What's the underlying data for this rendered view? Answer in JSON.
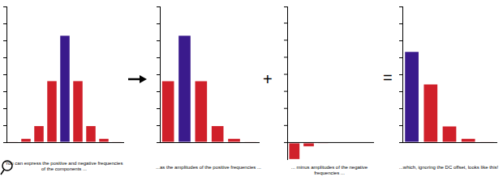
{
  "chart_data": [
    {
      "type": "bar",
      "title": [
        "You can express the positive and negative frequencies",
        "of the components ..."
      ],
      "categories": [
        null,
        null,
        null,
        null,
        null,
        null,
        null,
        null,
        null
      ],
      "values": [
        0.02,
        0.2,
        0.95,
        3.6,
        6.27,
        3.6,
        0.95,
        0.2,
        0.02
      ],
      "colors": [
        "#d0202a",
        "#d0202a",
        "#d0202a",
        "#d0202a",
        "#3a1a8c",
        "#d0202a",
        "#d0202a",
        "#d0202a",
        "#d0202a"
      ],
      "ylim": [
        0,
        8
      ],
      "yticks": [
        0,
        1,
        2,
        3,
        4,
        5,
        6,
        7,
        8
      ],
      "grid": false,
      "tick_labels": false
    },
    {
      "type": "bar",
      "title": "...as the amplitudes of the positive frequencies ...",
      "categories": [
        null,
        null,
        null,
        null,
        null,
        null
      ],
      "values": [
        3.6,
        6.27,
        3.6,
        0.95,
        0.2,
        0.02
      ],
      "colors": [
        "#d0202a",
        "#3a1a8c",
        "#d0202a",
        "#d0202a",
        "#d0202a",
        "#d0202a"
      ],
      "ylim": [
        0,
        8
      ],
      "yticks": [
        0,
        1,
        2,
        3,
        4,
        5,
        6,
        7,
        8
      ],
      "grid": false,
      "tick_labels": false
    },
    {
      "type": "bar",
      "title": "... minus amplitudes of the negative frequencies ...",
      "categories": [
        null,
        null,
        null,
        null,
        null,
        null
      ],
      "values": [
        -0.95,
        -0.2,
        -0.02,
        null,
        null,
        null
      ],
      "colors": [
        "#d0202a",
        "#d0202a",
        "#d0202a",
        "#d0202a",
        "#d0202a",
        "#d0202a"
      ],
      "ylim": [
        -1,
        8
      ],
      "yticks": [
        0,
        1,
        2,
        3,
        4,
        5,
        6,
        7,
        8
      ],
      "grid": false,
      "tick_labels": false
    },
    {
      "type": "bar",
      "title": "...which, ignoring the DC offset, looks like this!",
      "categories": [
        null,
        null,
        null,
        null,
        null
      ],
      "values": [
        5.32,
        3.4,
        0.93,
        0.2,
        0.02
      ],
      "colors": [
        "#3a1a8c",
        "#d0202a",
        "#d0202a",
        "#d0202a",
        "#d0202a"
      ],
      "ylim": [
        0,
        8
      ],
      "yticks": [
        0,
        1,
        2,
        3,
        4,
        5,
        6,
        7,
        8
      ],
      "grid": false,
      "tick_labels": false
    }
  ],
  "operators": [
    "+",
    "="
  ]
}
